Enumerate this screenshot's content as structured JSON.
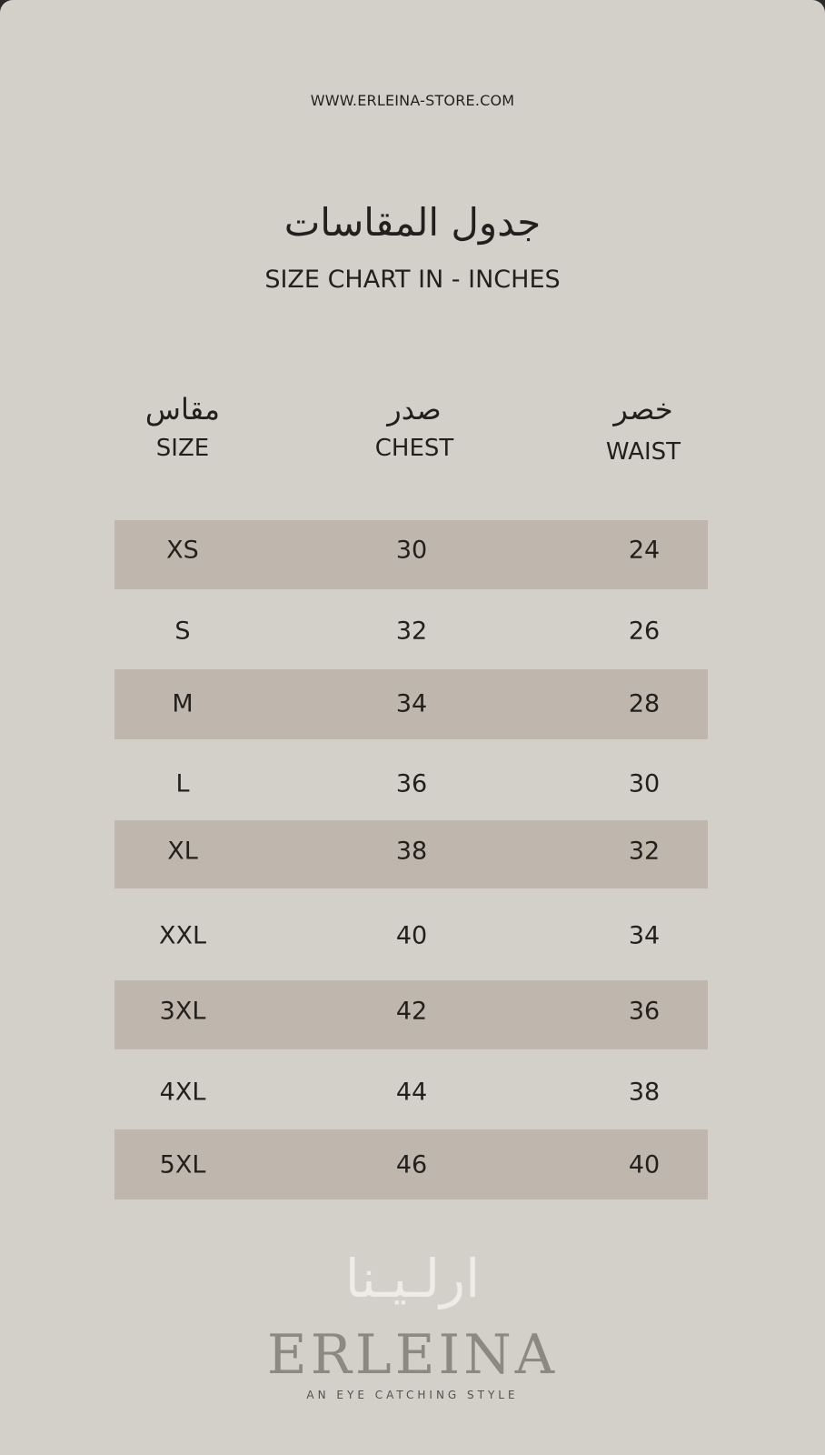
{
  "website": "WWW.ERLEINA-STORE.COM",
  "title_ar": "جدول المقاسات",
  "title_en": "SIZE CHART IN - INCHES",
  "columns": [
    {
      "ar": "مقاس",
      "en": "SIZE"
    },
    {
      "ar": "صدر",
      "en": "CHEST"
    },
    {
      "ar": "خصر",
      "en": "WAIST"
    }
  ],
  "rows": [
    [
      "XS",
      "30",
      "24"
    ],
    [
      "S",
      "32",
      "26"
    ],
    [
      "M",
      "34",
      "28"
    ],
    [
      "L",
      "36",
      "30"
    ],
    [
      "XL",
      "38",
      "32"
    ],
    [
      "XXL",
      "40",
      "34"
    ],
    [
      "3XL",
      "42",
      "36"
    ],
    [
      "4XL",
      "44",
      "38"
    ],
    [
      "5XL",
      "46",
      "40"
    ]
  ],
  "logo": {
    "ar": "ارلـيـنا",
    "en": "ERLEINA",
    "tagline": "AN EYE CATCHING STYLE"
  },
  "colors": {
    "background": "#d3d0ca",
    "band": "#bfb7ae",
    "text": "#231f1c"
  }
}
